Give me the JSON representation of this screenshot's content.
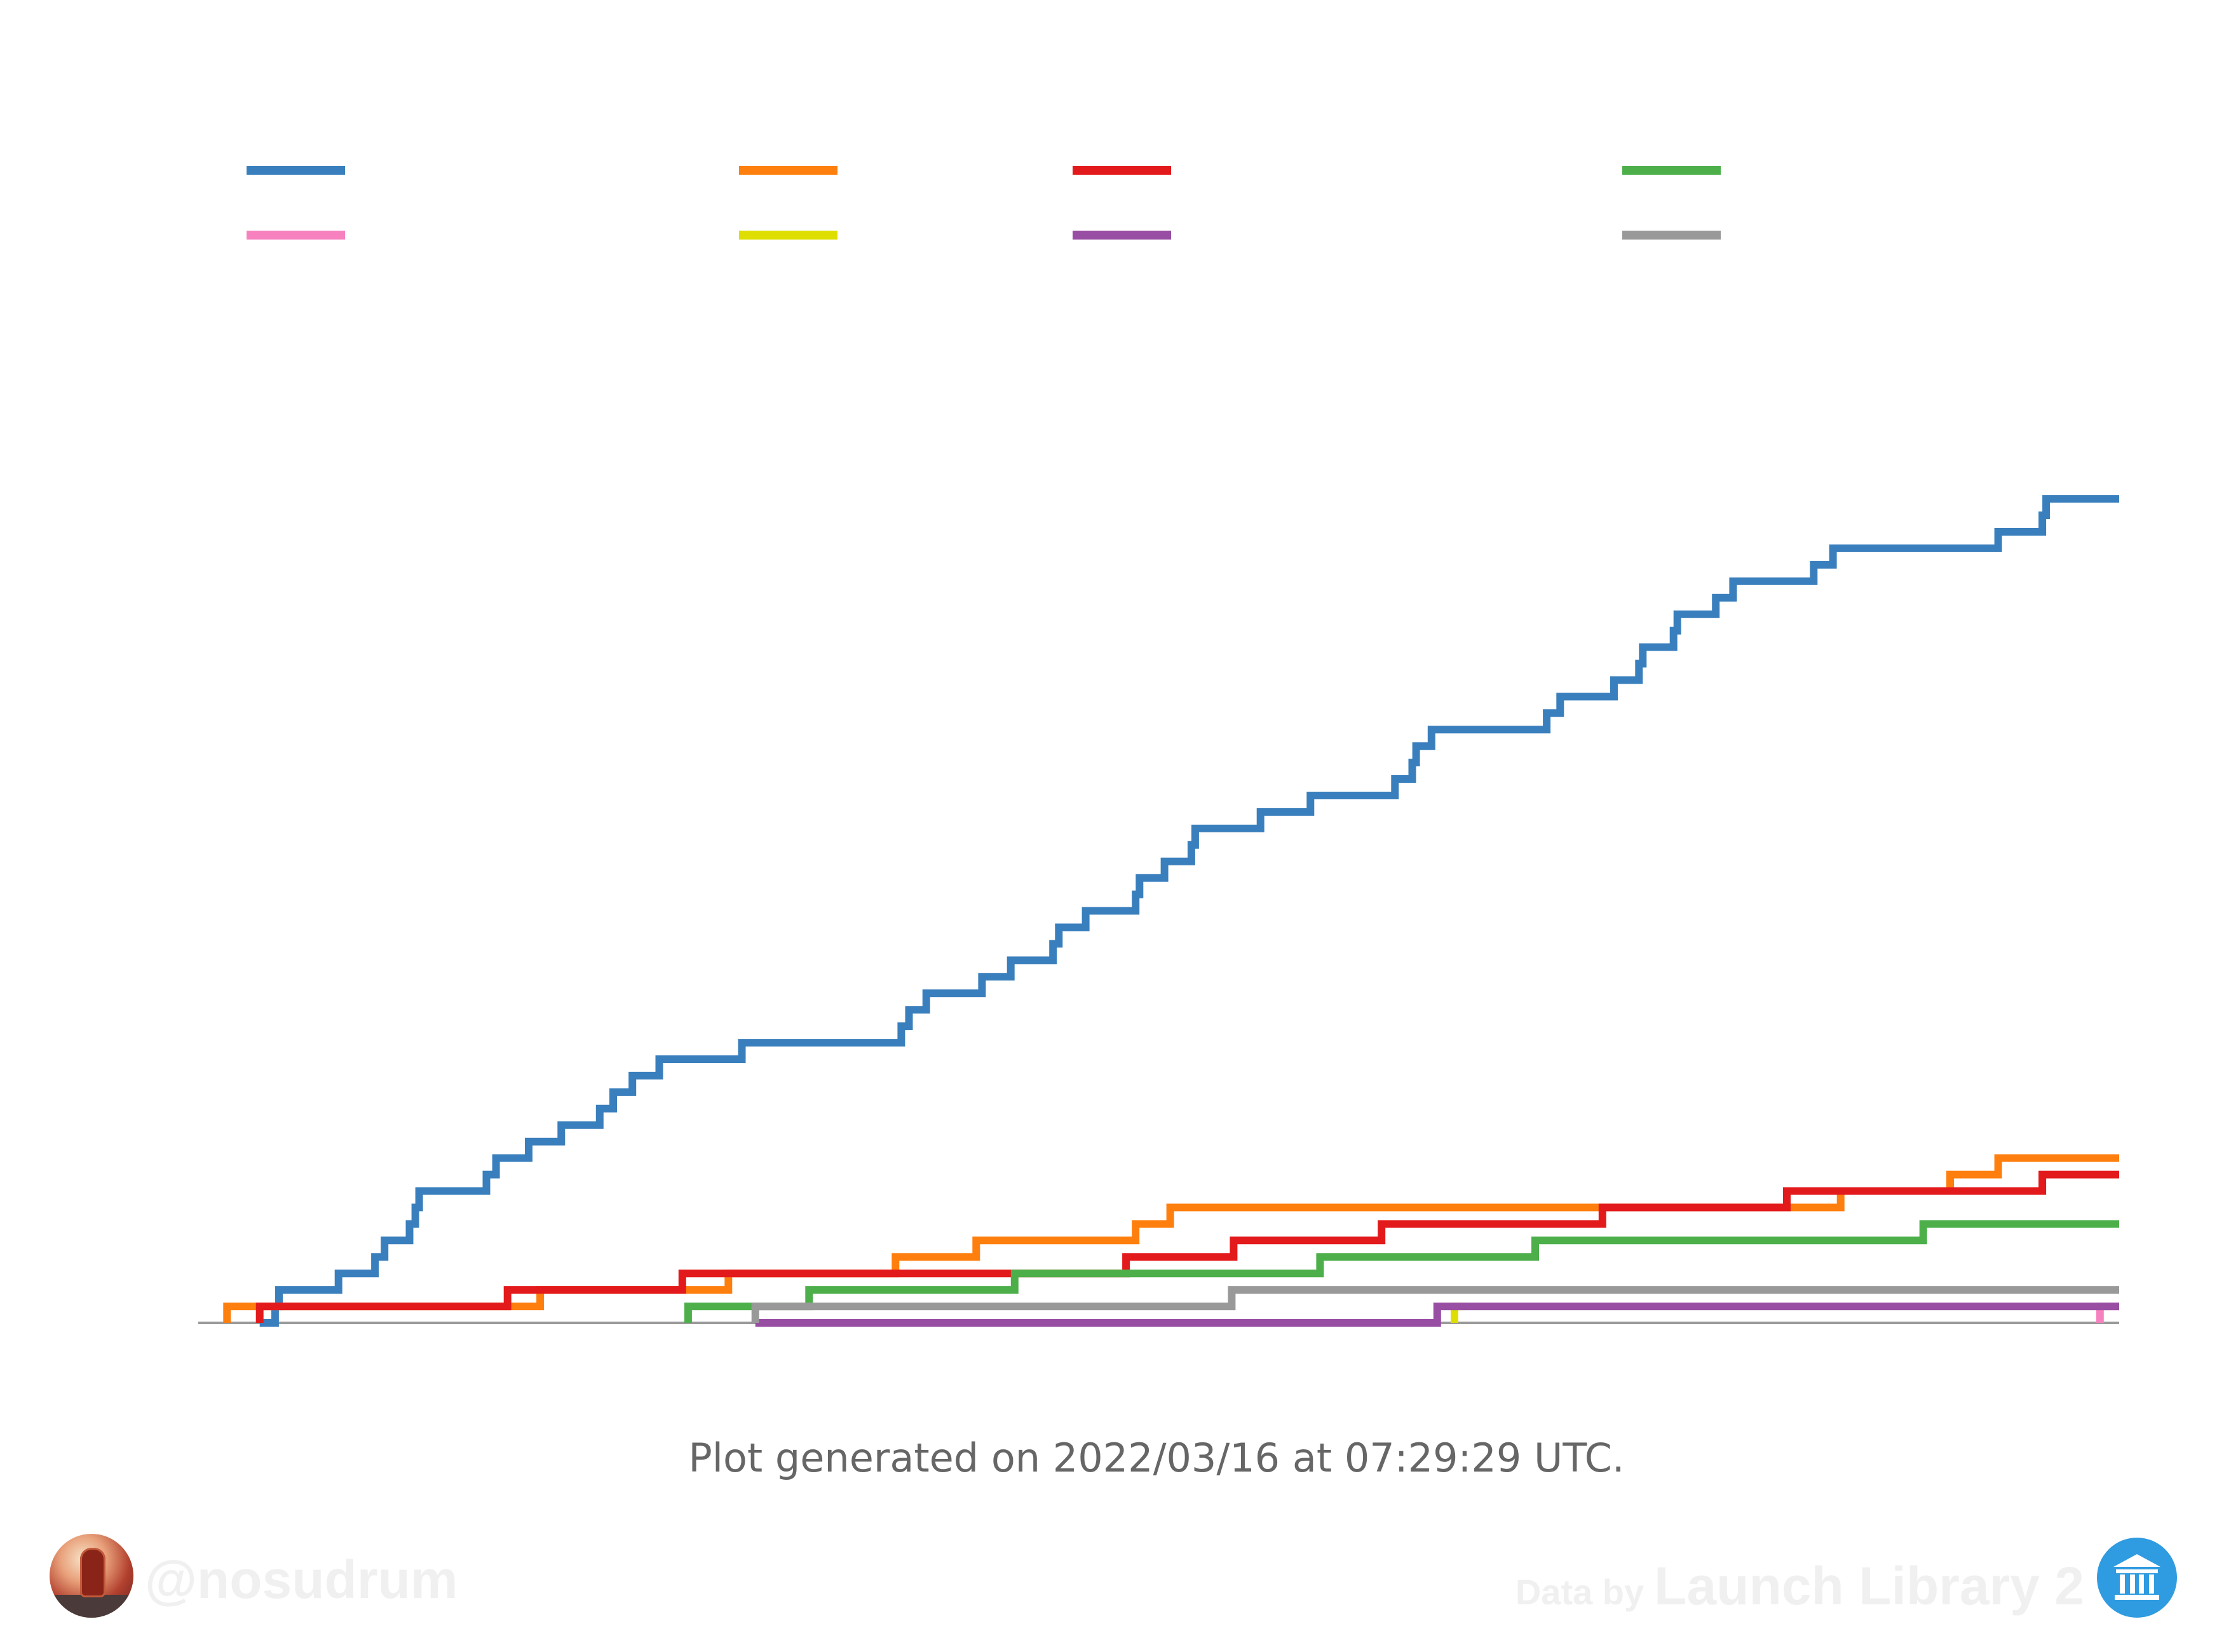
{
  "chart_data": {
    "type": "line",
    "step": true,
    "title": "",
    "xlabel": "",
    "ylabel": "",
    "legend_position": "top",
    "legend_columns": 4,
    "xlim": [
      0,
      1000
    ],
    "ylim": [
      0,
      61.3
    ],
    "baseline_color": "#999999",
    "series": [
      {
        "color": "#3a7fbd",
        "points": [
          [
            32,
            0
          ],
          [
            40,
            1
          ],
          [
            42,
            2
          ],
          [
            73,
            3
          ],
          [
            92,
            4
          ],
          [
            97,
            5
          ],
          [
            110,
            6
          ],
          [
            113,
            7
          ],
          [
            115,
            8
          ],
          [
            150,
            9
          ],
          [
            155,
            10
          ],
          [
            172,
            11
          ],
          [
            189,
            12
          ],
          [
            209,
            13
          ],
          [
            216,
            14
          ],
          [
            226,
            15
          ],
          [
            240,
            16
          ],
          [
            283,
            17
          ],
          [
            366,
            18
          ],
          [
            370,
            19
          ],
          [
            379,
            20
          ],
          [
            408,
            21
          ],
          [
            423,
            22
          ],
          [
            445,
            23
          ],
          [
            448,
            24
          ],
          [
            462,
            25
          ],
          [
            488,
            26
          ],
          [
            490,
            27
          ],
          [
            503,
            28
          ],
          [
            517,
            29
          ],
          [
            519,
            30
          ],
          [
            553,
            31
          ],
          [
            579,
            32
          ],
          [
            623,
            33
          ],
          [
            632,
            34
          ],
          [
            634,
            35
          ],
          [
            642,
            36
          ],
          [
            702,
            37
          ],
          [
            709,
            38
          ],
          [
            737,
            39
          ],
          [
            750,
            40
          ],
          [
            752,
            41
          ],
          [
            768,
            42
          ],
          [
            770,
            43
          ],
          [
            790,
            44
          ],
          [
            799,
            45
          ],
          [
            841,
            46
          ],
          [
            851,
            47
          ],
          [
            937,
            48
          ],
          [
            960,
            49
          ],
          [
            962,
            50
          ],
          [
            1000,
            50
          ]
        ]
      },
      {
        "color": "#ff7f0e",
        "points": [
          [
            15,
            1
          ],
          [
            178,
            2
          ],
          [
            276,
            3
          ],
          [
            363,
            4
          ],
          [
            405,
            5
          ],
          [
            488,
            6
          ],
          [
            506,
            7
          ],
          [
            855,
            8
          ],
          [
            912,
            9
          ],
          [
            937,
            10
          ],
          [
            1000,
            10
          ]
        ]
      },
      {
        "color": "#e31a1c",
        "points": [
          [
            32,
            1
          ],
          [
            161,
            2
          ],
          [
            252,
            3
          ],
          [
            483,
            4
          ],
          [
            539,
            5
          ],
          [
            616,
            6
          ],
          [
            731,
            7
          ],
          [
            827,
            8
          ],
          [
            960,
            9
          ],
          [
            1000,
            9
          ]
        ]
      },
      {
        "color": "#4daf4a",
        "points": [
          [
            255,
            0
          ],
          [
            255,
            1
          ],
          [
            318,
            2
          ],
          [
            425,
            3
          ],
          [
            584,
            4
          ],
          [
            696,
            5
          ],
          [
            898,
            6
          ],
          [
            1000,
            6
          ]
        ]
      },
      {
        "color": "#f781bf",
        "points": [
          [
            990,
            0
          ],
          [
            990,
            1
          ],
          [
            1000,
            1
          ]
        ]
      },
      {
        "color": "#dede00",
        "points": [
          [
            654,
            0
          ],
          [
            654,
            1
          ],
          [
            660,
            1
          ]
        ]
      },
      {
        "color": "#984ea3",
        "points": [
          [
            290,
            0
          ],
          [
            645,
            0
          ],
          [
            645,
            1
          ],
          [
            1000,
            1
          ]
        ]
      },
      {
        "color": "#999999",
        "points": [
          [
            290,
            0
          ],
          [
            290,
            1
          ],
          [
            538,
            1
          ],
          [
            538,
            2
          ],
          [
            1000,
            2
          ]
        ]
      }
    ]
  },
  "footer": {
    "generated_text": "Plot generated on 2022/03/16 at 07:29:29 UTC.",
    "handle": "@nosudrum",
    "credit_prefix": "Data by",
    "credit_name": "Launch Library 2"
  }
}
